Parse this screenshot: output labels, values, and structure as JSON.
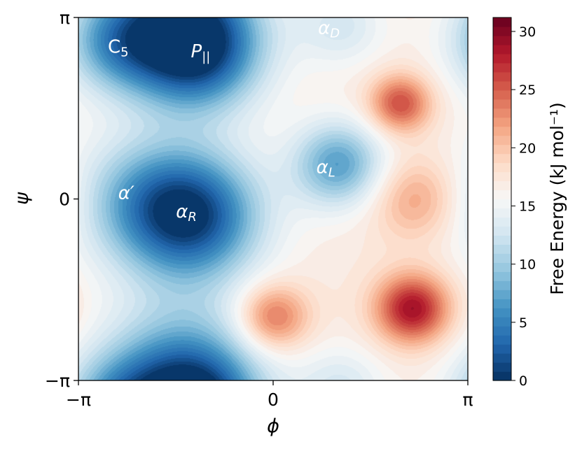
{
  "chart_data": {
    "type": "heatmap",
    "title": "",
    "xlabel": "ϕ",
    "ylabel": "ψ",
    "x_ticks": [
      "−π",
      "0",
      "π"
    ],
    "y_ticks": [
      "−π",
      "0",
      "π"
    ],
    "xlim": [
      -3.14159,
      3.14159
    ],
    "ylim": [
      -3.14159,
      3.14159
    ],
    "grid": false,
    "colorbar": {
      "label": "Free Energy (kJ mol⁻¹)",
      "ticks": [
        0,
        5,
        10,
        15,
        20,
        25,
        30
      ],
      "range": [
        0,
        31.2
      ],
      "colormap": "RdBu_r",
      "colors": [
        "#053061",
        "#2166ac",
        "#4393c3",
        "#92c5de",
        "#d1e5f0",
        "#f7f7f7",
        "#fddbc7",
        "#f4a582",
        "#d6604d",
        "#b2182b",
        "#67001f"
      ]
    },
    "background_level": 17,
    "wells": [
      {
        "name": "C_5",
        "phi": -2.55,
        "psi": 2.7,
        "depth": 8,
        "width": 0.6
      },
      {
        "name": "P_II",
        "phi": -1.25,
        "psi": 2.55,
        "depth": 14,
        "width": 0.72
      },
      {
        "name": "alpha_prime",
        "phi": -2.2,
        "psi": 0.0,
        "depth": 6,
        "width": 0.8
      },
      {
        "name": "alpha_R",
        "phi": -1.3,
        "psi": -0.3,
        "depth": 15,
        "width": 0.78
      },
      {
        "name": "alpha_L",
        "phi": 1.05,
        "psi": 0.6,
        "depth": 10,
        "width": 0.52
      },
      {
        "name": "alpha_D",
        "phi": 1.1,
        "psi": 3.0,
        "depth": 4,
        "width": 0.5
      },
      {
        "name": "lower_band",
        "phi": -1.5,
        "psi": -3.0,
        "depth": 9,
        "width": 0.9
      }
    ],
    "barriers": [
      {
        "phi": 2.25,
        "psi": -1.9,
        "height": 12,
        "width": 0.42
      },
      {
        "phi": 2.05,
        "psi": 1.65,
        "height": 9,
        "width": 0.35
      },
      {
        "phi": 0.0,
        "psi": -2.05,
        "height": 8,
        "width": 0.4
      },
      {
        "phi": 2.3,
        "psi": 0.0,
        "height": 5,
        "width": 0.5
      }
    ],
    "annotations": [
      {
        "id": "c5",
        "base": "C",
        "sub": "5",
        "italic": false,
        "phi": -2.5,
        "psi": 2.53,
        "color": "#ffffff"
      },
      {
        "id": "p-parallel",
        "base": "P",
        "sub": "||",
        "italic": true,
        "phi": -1.17,
        "psi": 2.45,
        "color": "#ffffff"
      },
      {
        "id": "alpha-prime",
        "base": "α′",
        "sub": "",
        "italic": true,
        "phi": -2.37,
        "psi": 0.0,
        "color": "#ffffff"
      },
      {
        "id": "alpha-r",
        "base": "α",
        "sub": "R",
        "italic": true,
        "phi": -1.4,
        "psi": -0.32,
        "color": "#ffffff"
      },
      {
        "id": "alpha-l",
        "base": "α",
        "sub": "L",
        "italic": true,
        "phi": 0.85,
        "psi": 0.45,
        "color": "#ffffff"
      },
      {
        "id": "alpha-d",
        "base": "α",
        "sub": "D",
        "italic": true,
        "phi": 0.9,
        "psi": 2.86,
        "color": "#ffffff"
      }
    ]
  }
}
